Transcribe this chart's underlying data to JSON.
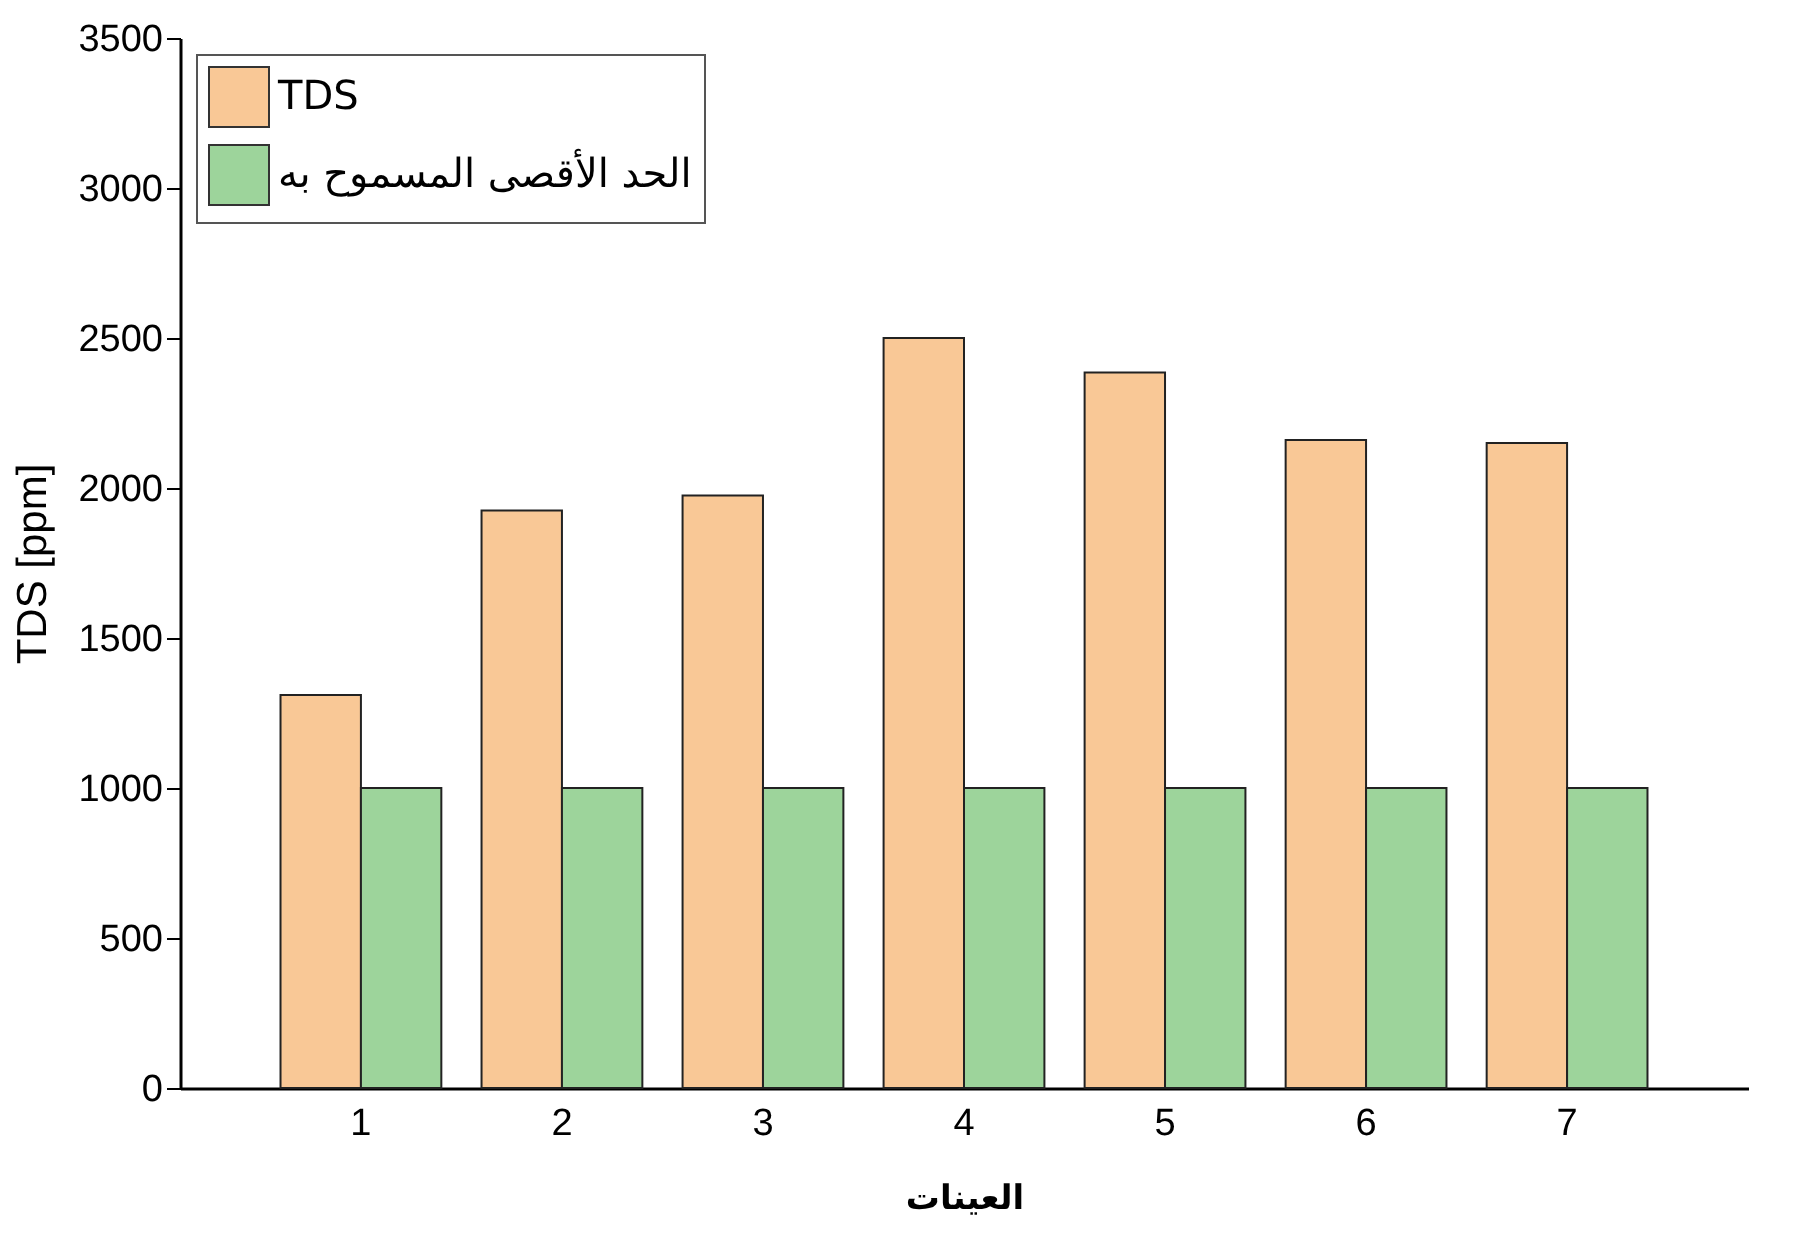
{
  "chart_data": {
    "type": "bar",
    "xlabel": "العينات",
    "ylabel": "TDS [ppm]",
    "categories": [
      "1",
      "2",
      "3",
      "4",
      "5",
      "6",
      "7"
    ],
    "series": [
      {
        "name": "TDS",
        "color": "#f9c896",
        "values": [
          1310,
          1925,
          1975,
          2500,
          2385,
          2160,
          2150
        ]
      },
      {
        "name": "الحد الأقصى المسموح به",
        "color": "#9dd49b",
        "values": [
          1000,
          1000,
          1000,
          1000,
          1000,
          1000,
          1000
        ]
      }
    ],
    "ylim": [
      0,
      3500
    ],
    "yticks": [
      0,
      500,
      1000,
      1500,
      2000,
      2500,
      3000,
      3500
    ],
    "grid": false,
    "legend": "top left"
  }
}
